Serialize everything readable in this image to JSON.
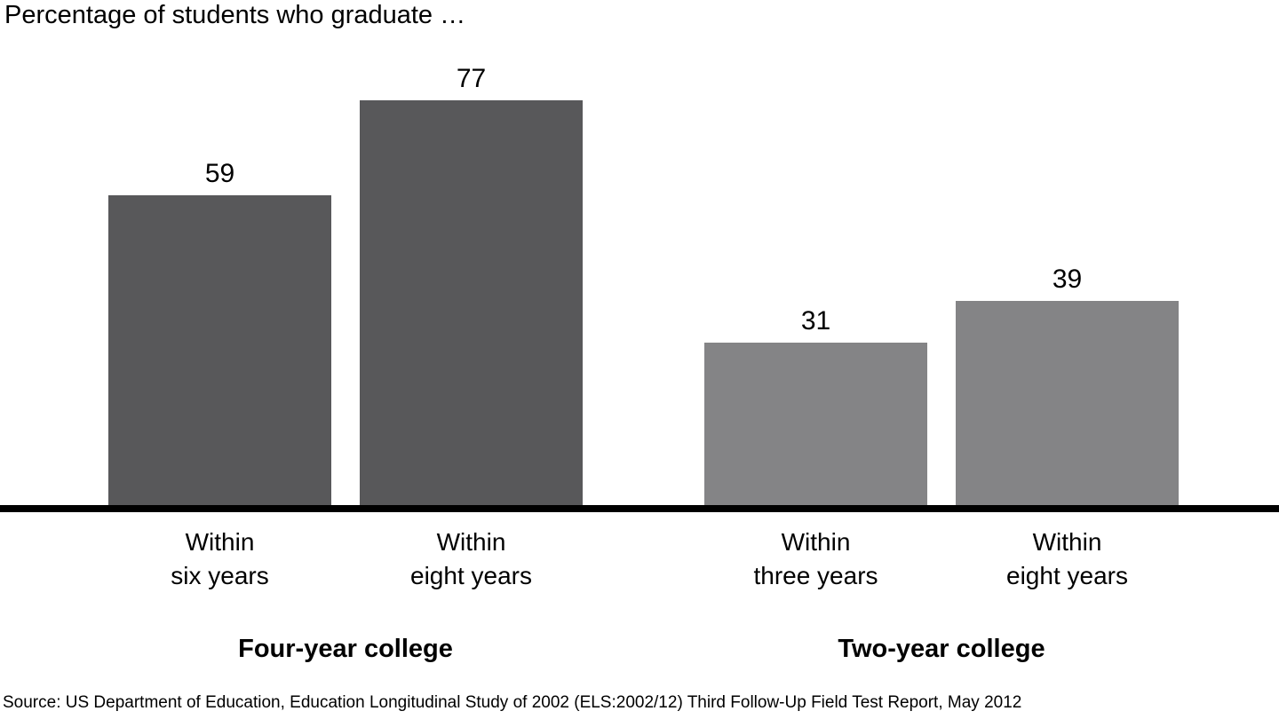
{
  "title": "Percentage of students who graduate …",
  "source_note": "Source: US Department of Education, Education Longitudinal Study of 2002 (ELS:2002/12) Third Follow-Up Field Test Report, May 2012",
  "colors": {
    "four_year_bar": "#58585a",
    "two_year_bar": "#848486",
    "axis": "#000000",
    "text": "#000000",
    "background": "#ffffff"
  },
  "chart_data": {
    "type": "bar",
    "title": "Percentage of students who graduate …",
    "xlabel": "",
    "ylabel": "",
    "ylim": [
      0,
      100
    ],
    "grid": false,
    "legend_position": "none",
    "value_labels_shown": true,
    "y_axis_shown": false,
    "categories": [
      "Within six years",
      "Within eight years",
      "Within three years",
      "Within eight years"
    ],
    "values": [
      59,
      77,
      31,
      39
    ],
    "groups": [
      {
        "name": "Four-year college",
        "color": "#58585a",
        "bars": [
          {
            "label": "Within\nsix years",
            "value": 59
          },
          {
            "label": "Within\neight years",
            "value": 77
          }
        ]
      },
      {
        "name": "Two-year college",
        "color": "#848486",
        "bars": [
          {
            "label": "Within\nthree years",
            "value": 31
          },
          {
            "label": "Within\neight years",
            "value": 39
          }
        ]
      }
    ]
  }
}
